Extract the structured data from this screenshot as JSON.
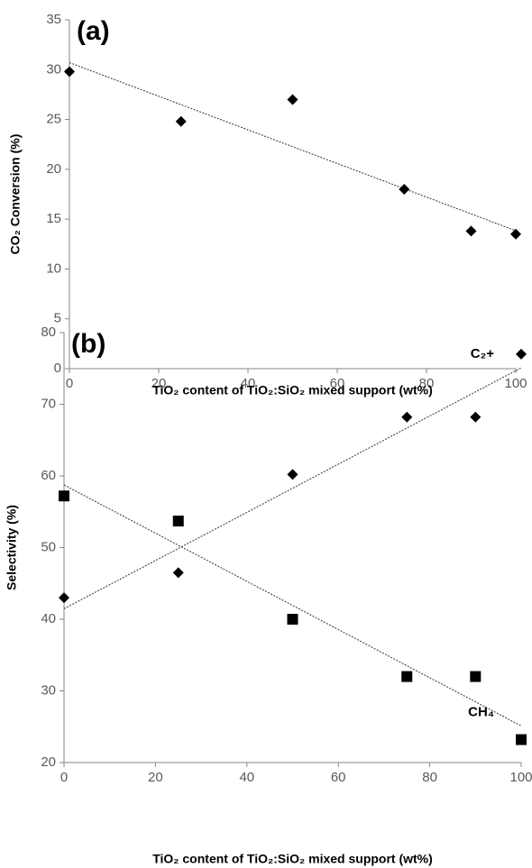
{
  "chart_data": [
    {
      "type": "scatter",
      "annotation": "(a)",
      "xlabel": "TiO₂ content of TiO₂:SiO₂ mixed support (wt%)",
      "ylabel": "CO₂ Conversion (%)",
      "x": [
        0,
        25,
        50,
        75,
        90,
        100
      ],
      "series": [
        {
          "color": "#000000",
          "marker": "diamond",
          "values": [
            29.8,
            24.8,
            27.0,
            18.0,
            13.8,
            13.5
          ]
        }
      ],
      "xlim": [
        0,
        100
      ],
      "xticks": [
        0,
        20,
        40,
        60,
        80,
        100
      ],
      "ylim": [
        0,
        35
      ],
      "yticks": [
        0,
        5,
        10,
        15,
        20,
        25,
        30,
        35
      ],
      "trendline": true
    },
    {
      "type": "scatter",
      "annotation": "(b)",
      "xlabel": "TiO₂ content of TiO₂:SiO₂ mixed support (wt%)",
      "ylabel": "Selectivity (%)",
      "x": [
        0,
        25,
        50,
        75,
        90,
        100
      ],
      "series": [
        {
          "name": "C₂+",
          "color": "#000000",
          "marker": "diamond",
          "values": [
            43.0,
            46.5,
            60.2,
            68.2,
            68.2,
            77.0
          ]
        },
        {
          "name": "CH₄",
          "color": "#000000",
          "marker": "square",
          "values": [
            57.2,
            53.7,
            40.0,
            32.0,
            32.0,
            23.2
          ]
        }
      ],
      "xlim": [
        0,
        100
      ],
      "xticks": [
        0,
        20,
        40,
        60,
        80,
        100
      ],
      "ylim": [
        20,
        80
      ],
      "yticks": [
        20,
        30,
        40,
        50,
        60,
        70,
        80
      ],
      "trendline": true
    }
  ]
}
